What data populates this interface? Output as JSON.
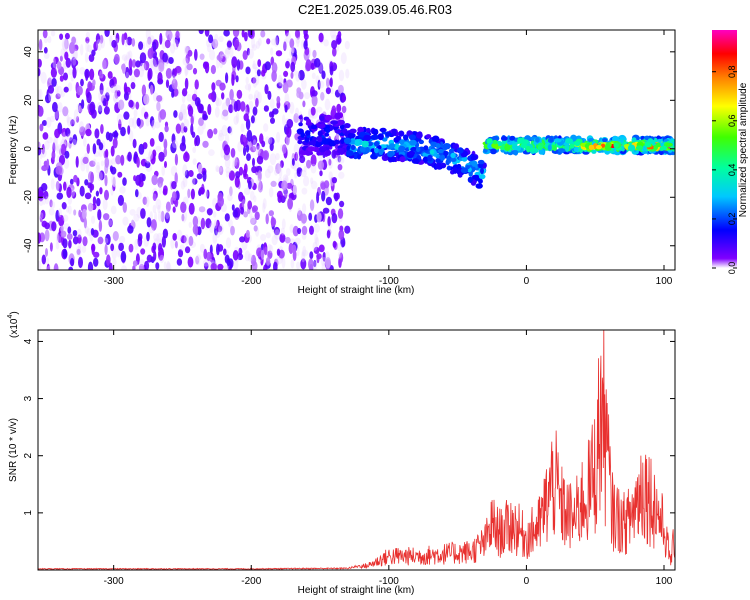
{
  "title": "C2E1.2025.039.05.46.R03",
  "chart_data": [
    {
      "type": "heatmap",
      "xlabel": "Height of straight line (km)",
      "ylabel": "Frequency (Hz)",
      "xlim": [
        -355,
        108
      ],
      "ylim": [
        -50,
        49
      ],
      "x_ticks": [
        -300,
        -200,
        -100,
        0,
        100
      ],
      "x_tick_labels": [
        "-300",
        "-200",
        "-100",
        "0",
        "100"
      ],
      "y_ticks": [
        -40,
        -20,
        0,
        20,
        40
      ],
      "y_tick_labels": [
        "-40",
        "-20",
        "0",
        "20",
        "40"
      ],
      "grid": false,
      "colorbar": {
        "label": "Normalized spectral amplitude",
        "range": [
          0,
          0.97
        ],
        "ticks": [
          0.0,
          0.2,
          0.4,
          0.6,
          0.8
        ],
        "tick_labels": [
          "0.0",
          "0.2",
          "0.4",
          "0.6",
          "0.8"
        ]
      },
      "regions": [
        {
          "x_from": -355,
          "x_to": -130,
          "freq_range": [
            -50,
            49
          ],
          "amplitude": 0.05
        },
        {
          "x_from": -165,
          "x_to": -130,
          "freq_range": [
            -2,
            14
          ],
          "amplitude": 0.18
        },
        {
          "x_from": -130,
          "x_to": -30,
          "freq_center": 2,
          "freq_to_at_end": -11,
          "half_width": 6,
          "amplitude": 0.3
        },
        {
          "x_from": -30,
          "x_to": 108,
          "freq_center": 1.5,
          "half_width": 3,
          "amplitude": 0.55
        },
        {
          "x_from": 40,
          "x_to": 108,
          "freq_center": 1,
          "half_width": 1,
          "amplitude": 0.9
        }
      ]
    },
    {
      "type": "line",
      "xlabel": "Height of straight line (km)",
      "ylabel": "SNR (10 * v/v)",
      "y_multiplier": "(x10",
      "y_multiplier_exp": "4",
      "xlim": [
        -355,
        108
      ],
      "ylim": [
        0,
        4.2
      ],
      "x_ticks": [
        -300,
        -200,
        -100,
        0,
        100
      ],
      "x_tick_labels": [
        "-300",
        "-200",
        "-100",
        "0",
        "100"
      ],
      "y_ticks": [
        1,
        2,
        3,
        4
      ],
      "y_tick_labels": [
        "1",
        "2",
        "3",
        "4"
      ],
      "grid": false,
      "series": [
        {
          "color": "#e8312f",
          "x": [
            -355,
            -300,
            -200,
            -130,
            -115,
            -100,
            -80,
            -60,
            -40,
            -30,
            -25,
            -20,
            -10,
            0,
            10,
            15,
            20,
            25,
            30,
            35,
            40,
            45,
            50,
            55,
            58,
            62,
            70,
            75,
            80,
            85,
            90,
            95,
            100,
            105,
            108
          ],
          "y": [
            0.02,
            0.02,
            0.02,
            0.03,
            0.1,
            0.3,
            0.3,
            0.35,
            0.4,
            0.6,
            1.0,
            0.8,
            1.0,
            0.7,
            1.0,
            1.5,
            2.0,
            1.4,
            1.2,
            1.1,
            1.5,
            1.7,
            2.2,
            3.6,
            2.8,
            1.3,
            1.0,
            1.1,
            1.5,
            1.9,
            1.6,
            1.3,
            0.9,
            0.2,
            0.8
          ]
        }
      ]
    }
  ]
}
